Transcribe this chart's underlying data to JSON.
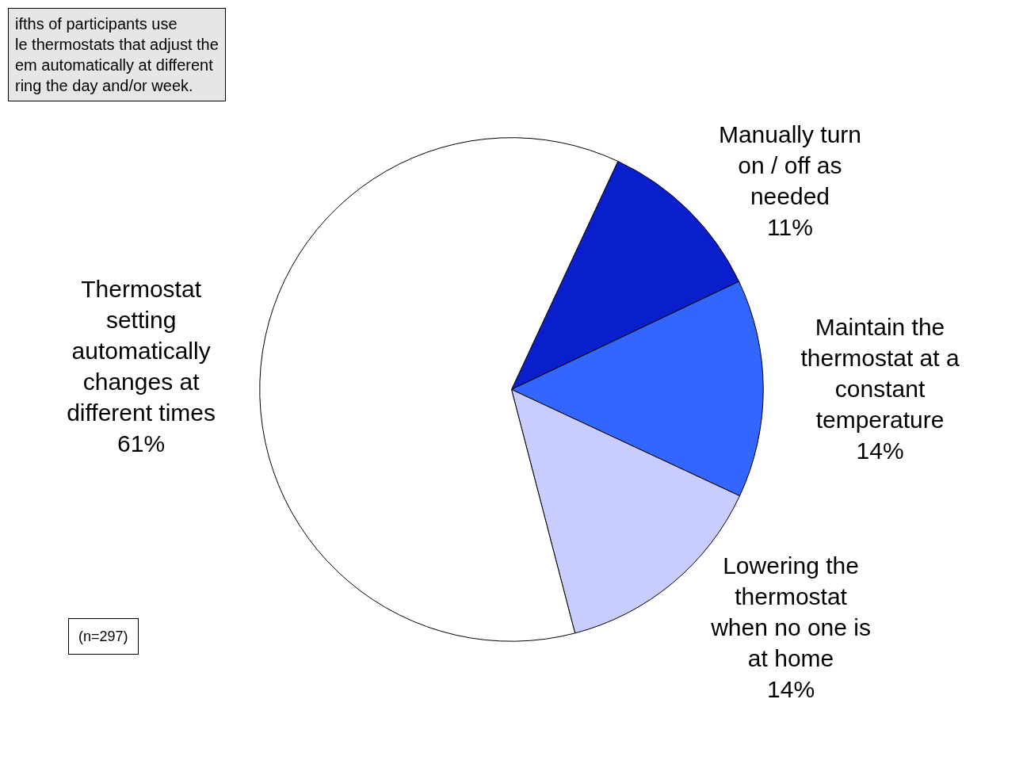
{
  "chart_data": {
    "type": "pie",
    "categories": [
      "Manually turn\non / off as\nneeded",
      "Maintain the\nthermostat at a\nconstant\ntemperature",
      "Lowering the\nthermostat\nwhen no one is\nat home",
      "Thermostat\nsetting\nautomatically\nchanges at\ndifferent times"
    ],
    "values": [
      11,
      14,
      14,
      61
    ],
    "colors": [
      "#0a1fcc",
      "#3366ff",
      "#c8ccff",
      "#ffffff"
    ],
    "value_labels": [
      "11%",
      "14%",
      "14%",
      "61%"
    ],
    "legend": false,
    "annotations": [
      "ifths of participants use\nle thermostats that adjust the\nem automatically at different\nring the day and/or week.",
      "(n=297)"
    ]
  }
}
